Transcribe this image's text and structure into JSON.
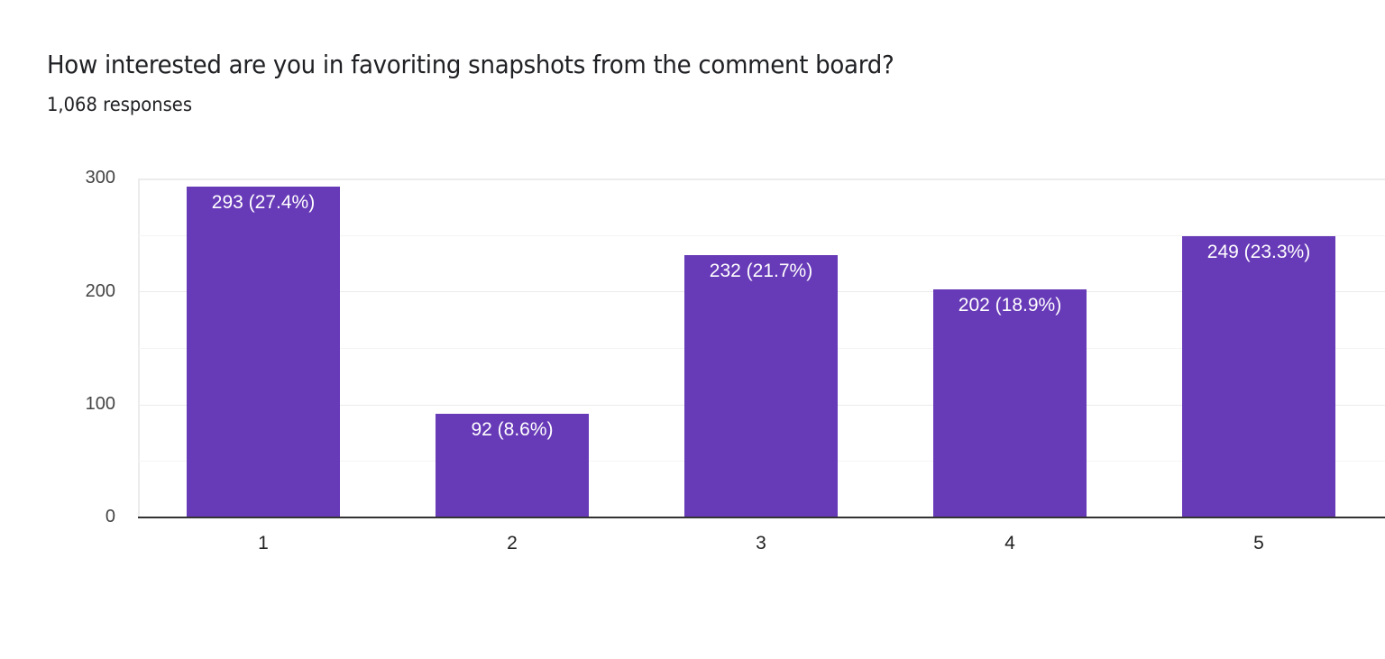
{
  "header": {
    "title": "How interested are you in favoriting snapshots from the comment board?",
    "responses": "1,068 responses"
  },
  "colors": {
    "bar": "#673ab7",
    "bar_label": "#ffffff",
    "grid": "#ebebeb",
    "axis": "#333333"
  },
  "axis": {
    "y_ticks": [
      "300",
      "200",
      "100",
      "0"
    ],
    "x_ticks": [
      "1",
      "2",
      "3",
      "4",
      "5"
    ]
  },
  "bars": [
    {
      "category": "1",
      "value": 293,
      "label": "293 (27.4%)"
    },
    {
      "category": "2",
      "value": 92,
      "label": "92 (8.6%)"
    },
    {
      "category": "3",
      "value": 232,
      "label": "232 (21.7%)"
    },
    {
      "category": "4",
      "value": 202,
      "label": "202 (18.9%)"
    },
    {
      "category": "5",
      "value": 249,
      "label": "249 (23.3%)"
    }
  ],
  "chart_data": {
    "type": "bar",
    "title": "How interested are you in favoriting snapshots from the comment board?",
    "subtitle": "1,068 responses",
    "categories": [
      "1",
      "2",
      "3",
      "4",
      "5"
    ],
    "values": [
      293,
      92,
      232,
      202,
      249
    ],
    "percentages": [
      27.4,
      8.6,
      21.7,
      18.9,
      23.3
    ],
    "data_labels": [
      "293 (27.4%)",
      "92 (8.6%)",
      "232 (21.7%)",
      "202 (18.9%)",
      "249 (23.3%)"
    ],
    "xlabel": "",
    "ylabel": "",
    "ylim": [
      0,
      300
    ],
    "y_ticks": [
      0,
      100,
      200,
      300
    ],
    "grid": true,
    "legend": "none",
    "color": "#673ab7"
  }
}
